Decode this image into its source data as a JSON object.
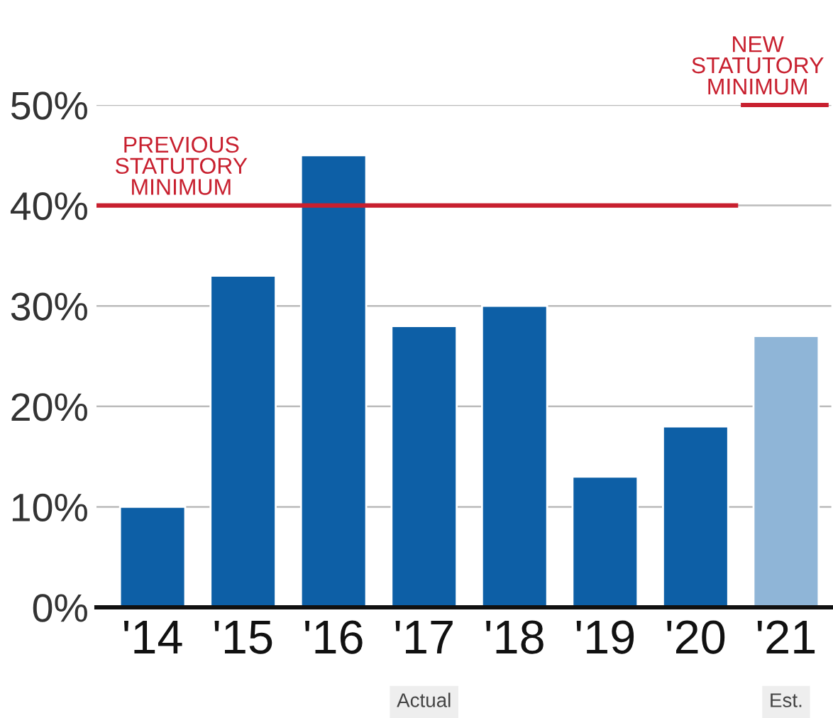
{
  "chart_data": {
    "type": "bar",
    "categories": [
      "'14",
      "'15",
      "'16",
      "'17",
      "'18",
      "'19",
      "'20",
      "'21"
    ],
    "values": [
      10,
      33,
      45,
      28,
      30,
      13,
      18,
      27
    ],
    "colors": [
      "#0d5fa6",
      "#0d5fa6",
      "#0d5fa6",
      "#0d5fa6",
      "#0d5fa6",
      "#0d5fa6",
      "#0d5fa6",
      "#8fb5d7"
    ],
    "ylim": [
      0,
      50
    ],
    "yticks": [
      {
        "value": 0,
        "label": "0%"
      },
      {
        "value": 10,
        "label": "10%"
      },
      {
        "value": 20,
        "label": "20%"
      },
      {
        "value": 30,
        "label": "30%"
      },
      {
        "value": 40,
        "label": "40%"
      },
      {
        "value": 50,
        "label": "50%"
      }
    ],
    "grid": "y",
    "ref_lines": [
      {
        "axis": "y",
        "value": 40,
        "label": "PREVIOUS\nSTATUTORY\nMINIMUM",
        "color": "#c8202f"
      },
      {
        "axis": "y",
        "value": 50,
        "label": "NEW\nSTATUTORY\nMINIMUM",
        "color": "#c8202f"
      }
    ],
    "annotations": [
      "Actual",
      "Est."
    ]
  }
}
